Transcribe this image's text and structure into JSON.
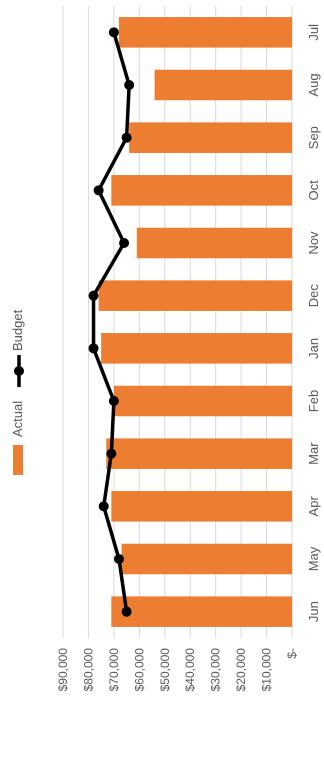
{
  "chart_data": {
    "type": "bar",
    "orientation": "rotated-90",
    "categories": [
      "Jul",
      "Aug",
      "Sep",
      "Oct",
      "Nov",
      "Dec",
      "Jan",
      "Feb",
      "Mar",
      "Apr",
      "May",
      "Jun"
    ],
    "value_ticks": [
      "$-",
      "$10,000",
      "$20,000",
      "$30,000",
      "$40,000",
      "$50,000",
      "$60,000",
      "$70,000",
      "$80,000",
      "$90,000"
    ],
    "ylim": [
      0,
      90000
    ],
    "grid": true,
    "legend_position": "top",
    "series": [
      {
        "name": "Actual",
        "type": "bar",
        "color": "#ED7D31",
        "values": [
          68000,
          54000,
          64000,
          71000,
          61000,
          76000,
          75000,
          70000,
          73000,
          71000,
          67000,
          71000
        ]
      },
      {
        "name": "Budget",
        "type": "line",
        "color": "#000000",
        "values": [
          70000,
          64000,
          65000,
          76000,
          66000,
          78000,
          78000,
          70000,
          71000,
          74000,
          68000,
          65000
        ]
      }
    ]
  }
}
